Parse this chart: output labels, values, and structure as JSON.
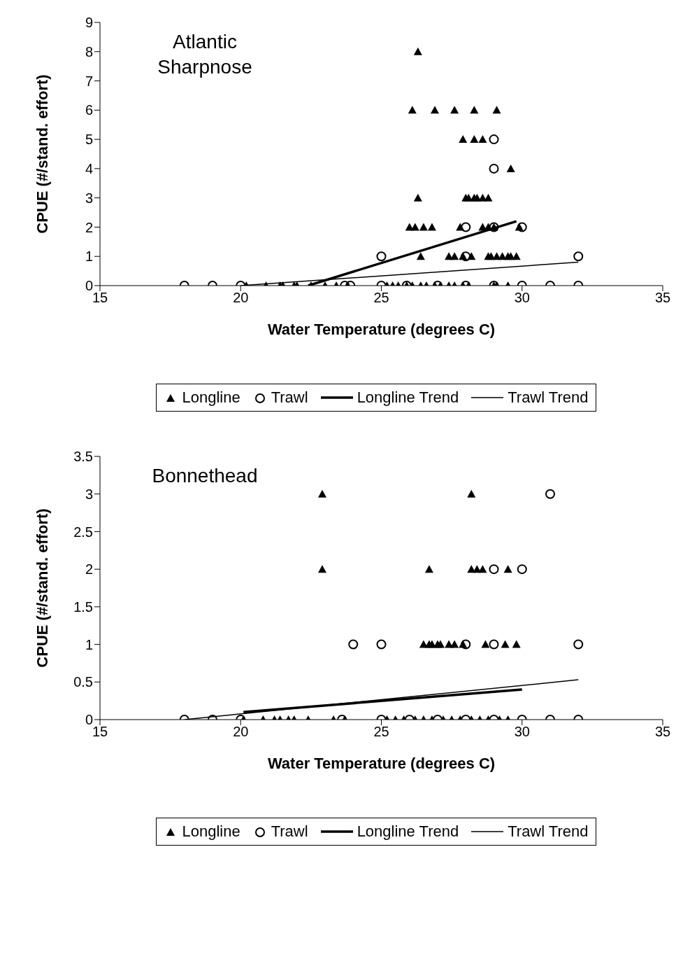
{
  "chart_data": [
    {
      "type": "scatter",
      "title": "Atlantic Sharpnose",
      "xlabel": "Water Temperature (degrees C)",
      "ylabel": "CPUE (#/stand. effort)",
      "xlim": [
        15,
        35
      ],
      "xticks": [
        15,
        20,
        25,
        30,
        35
      ],
      "ylim": [
        0,
        9
      ],
      "yticks": [
        0,
        1,
        2,
        3,
        4,
        5,
        6,
        7,
        8,
        9
      ],
      "grid": false,
      "legend": "bottom",
      "series": [
        {
          "name": "Longline",
          "color": "#000000",
          "marker": "triangle",
          "x": [
            26.3,
            26.1,
            26.9,
            27.6,
            28.3,
            29.1,
            27.9,
            28.3,
            28.6,
            29.6,
            26.3,
            28.0,
            28.1,
            28.3,
            28.4,
            28.6,
            28.8,
            26.0,
            26.2,
            26.5,
            26.8,
            27.8,
            28.6,
            28.8,
            29.0,
            29.9,
            26.4,
            27.4,
            27.6,
            27.9,
            28.2,
            28.8,
            28.9,
            29.1,
            29.3,
            29.5,
            29.6,
            29.8,
            20.2,
            20.9,
            21.4,
            21.5,
            21.9,
            22.0,
            22.5,
            23.0,
            23.4,
            23.8,
            25.2,
            25.4,
            25.6,
            25.9,
            26.1,
            26.4,
            26.6,
            26.9,
            27.1,
            27.4,
            27.6,
            27.9,
            28.1,
            29.0,
            29.1,
            29.5
          ],
          "values": [
            8,
            6,
            6,
            6,
            6,
            6,
            5,
            5,
            5,
            4,
            3,
            3,
            3,
            3,
            3,
            3,
            3,
            2,
            2,
            2,
            2,
            2,
            2,
            2,
            2,
            2,
            1,
            1,
            1,
            1,
            1,
            1,
            1,
            1,
            1,
            1,
            1,
            1,
            0,
            0,
            0,
            0,
            0,
            0,
            0,
            0,
            0,
            0,
            0,
            0,
            0,
            0,
            0,
            0,
            0,
            0,
            0,
            0,
            0,
            0,
            0,
            0,
            0,
            0
          ]
        },
        {
          "name": "Trawl",
          "color": "#000000",
          "marker": "circle",
          "x": [
            18,
            19,
            20,
            23.7,
            23.9,
            25,
            25.9,
            27,
            28,
            29,
            30,
            31,
            32,
            25,
            28,
            32,
            28,
            29,
            30,
            29,
            29
          ],
          "values": [
            0,
            0,
            0,
            0,
            0,
            0,
            0,
            0,
            0,
            0,
            0,
            0,
            0,
            1,
            1,
            1,
            2,
            2,
            2,
            4,
            5
          ]
        },
        {
          "name": "Longline Trend",
          "type": "line",
          "color": "#000000",
          "line_style": "solid",
          "x": [
            22.4,
            29.8
          ],
          "values": [
            0,
            2.2
          ]
        },
        {
          "name": "Trawl Trend",
          "type": "line",
          "color": "#000000",
          "line_style": "solid",
          "x": [
            20,
            32
          ],
          "values": [
            0,
            0.8
          ]
        }
      ]
    },
    {
      "type": "scatter",
      "title": "Bonnethead",
      "xlabel": "Water Temperature (degrees C)",
      "ylabel": "CPUE (#/stand. effort)",
      "xlim": [
        15,
        35
      ],
      "xticks": [
        15,
        20,
        25,
        30,
        35
      ],
      "ylim": [
        0,
        3.5
      ],
      "yticks": [
        0,
        0.5,
        1,
        1.5,
        2,
        2.5,
        3,
        3.5
      ],
      "grid": false,
      "legend": "bottom",
      "series": [
        {
          "name": "Longline",
          "color": "#000000",
          "marker": "triangle",
          "x": [
            22.9,
            28.2,
            22.9,
            26.7,
            28.2,
            28.4,
            28.6,
            29.5,
            26.5,
            26.7,
            26.8,
            27.0,
            27.1,
            27.4,
            27.6,
            27.9,
            28.7,
            29.4,
            29.8,
            20.1,
            20.8,
            21.2,
            21.4,
            21.7,
            21.9,
            22.4,
            23.3,
            23.7,
            25.2,
            25.5,
            25.8,
            26.2,
            26.5,
            26.8,
            27.2,
            27.5,
            27.8,
            28.2,
            28.5,
            28.8,
            29.2,
            29.5
          ],
          "values": [
            3,
            3,
            2,
            2,
            2,
            2,
            2,
            2,
            1,
            1,
            1,
            1,
            1,
            1,
            1,
            1,
            1,
            1,
            1,
            0,
            0,
            0,
            0,
            0,
            0,
            0,
            0,
            0,
            0,
            0,
            0,
            0,
            0,
            0,
            0,
            0,
            0,
            0,
            0,
            0,
            0,
            0
          ]
        },
        {
          "name": "Trawl",
          "color": "#000000",
          "marker": "circle",
          "x": [
            18,
            19,
            20,
            23.6,
            25,
            26,
            27,
            28,
            29,
            30,
            31,
            32,
            24,
            25,
            28,
            29,
            32,
            29,
            30,
            31
          ],
          "values": [
            0,
            0,
            0,
            0,
            0,
            0,
            0,
            0,
            0,
            0,
            0,
            0,
            1,
            1,
            1,
            1,
            1,
            2,
            2,
            3
          ]
        },
        {
          "name": "Longline Trend",
          "type": "line",
          "color": "#000000",
          "line_style": "solid",
          "x": [
            20.1,
            30
          ],
          "values": [
            0.1,
            0.4
          ]
        },
        {
          "name": "Trawl Trend",
          "type": "line",
          "color": "#000000",
          "line_style": "solid",
          "x": [
            18,
            32
          ],
          "values": [
            0,
            0.53
          ]
        }
      ]
    }
  ]
}
